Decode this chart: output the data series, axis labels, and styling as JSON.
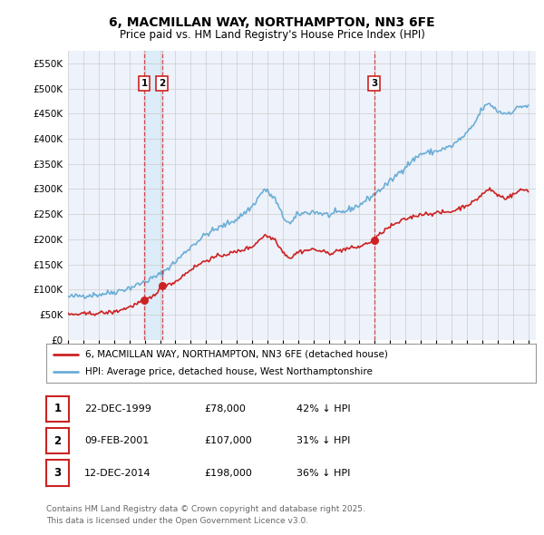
{
  "title": "6, MACMILLAN WAY, NORTHAMPTON, NN3 6FE",
  "subtitle": "Price paid vs. HM Land Registry's House Price Index (HPI)",
  "legend_line1": "6, MACMILLAN WAY, NORTHAMPTON, NN3 6FE (detached house)",
  "legend_line2": "HPI: Average price, detached house, West Northamptonshire",
  "footer1": "Contains HM Land Registry data © Crown copyright and database right 2025.",
  "footer2": "This data is licensed under the Open Government Licence v3.0.",
  "transactions": [
    {
      "num": 1,
      "date": "22-DEC-1999",
      "price": "£78,000",
      "hpi": "42% ↓ HPI",
      "year": 1999.97
    },
    {
      "num": 2,
      "date": "09-FEB-2001",
      "price": "£107,000",
      "hpi": "31% ↓ HPI",
      "year": 2001.12
    },
    {
      "num": 3,
      "date": "12-DEC-2014",
      "price": "£198,000",
      "hpi": "36% ↓ HPI",
      "year": 2014.95
    }
  ],
  "transaction_values": [
    78000,
    107000,
    198000
  ],
  "ylim": [
    0,
    575000
  ],
  "yticks": [
    0,
    50000,
    100000,
    150000,
    200000,
    250000,
    300000,
    350000,
    400000,
    450000,
    500000,
    550000
  ],
  "hpi_color": "#6BAED6",
  "price_color": "#CC2222",
  "vline_color": "#CC2222",
  "shade_color": "#D0E8F8",
  "grid_color": "#CCCCCC",
  "bg_color": "#EEF2FA",
  "white": "#FFFFFF"
}
